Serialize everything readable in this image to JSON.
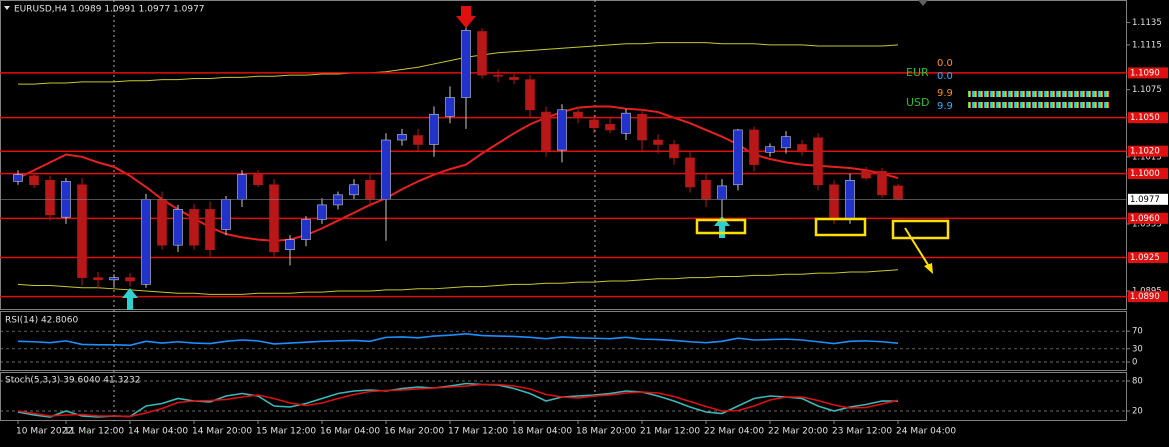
{
  "chart_data": [
    {
      "type": "candlestick",
      "title": "EURUSD,H4  1.0989 1.0991 1.0977 1.0977",
      "categories": [
        "10 Mar 2022",
        null,
        null,
        "11 Mar 12:00",
        null,
        null,
        null,
        "14 Mar 04:00",
        null,
        null,
        null,
        "14 Mar 20:00",
        null,
        null,
        null,
        "15 Mar 12:00",
        null,
        null,
        null,
        "16 Mar 04:00",
        null,
        null,
        null,
        "16 Mar 20:00",
        null,
        null,
        null,
        "17 Mar 12:00",
        null,
        null,
        null,
        "18 Mar 04:00",
        null,
        null,
        null,
        "18 Mar 20:00",
        null,
        null,
        null,
        "21 Mar 12:00",
        null,
        null,
        null,
        "22 Mar 04:00",
        null,
        null,
        null,
        "22 Mar 20:00",
        null,
        null,
        null,
        "23 Mar 12:00",
        null,
        null,
        null,
        "24 Mar 04:00"
      ],
      "open": [
        1.0993,
        1.0998,
        1.0994,
        1.0961,
        1.099,
        1.0907,
        1.0905,
        1.0907,
        1.0901,
        1.0977,
        1.0936,
        1.0968,
        1.0968,
        1.095,
        1.0977,
        1.0999,
        1.099,
        1.0932,
        1.0941,
        1.0959,
        1.0972,
        1.0981,
        1.0994,
        1.0977,
        1.103,
        1.1034,
        1.1026,
        1.1051,
        1.1068,
        1.1127,
        1.1088,
        1.1086,
        1.1084,
        1.1055,
        1.1021,
        1.1055,
        1.1048,
        1.1044,
        1.1036,
        1.1053,
        1.103,
        1.1026,
        1.1014,
        1.0994,
        1.0977,
        1.099,
        1.1039,
        1.1019,
        1.1023,
        1.1026,
        1.1032,
        1.099,
        1.0959,
        1.1002,
        1.1002,
        1.0989
      ],
      "high": [
        1.1003,
        1.1001,
        1.0998,
        1.0996,
        1.0996,
        1.0912,
        1.091,
        1.0911,
        1.0982,
        1.0984,
        1.0972,
        1.0973,
        1.0975,
        1.098,
        1.1003,
        1.1003,
        1.0995,
        1.0945,
        1.0962,
        1.0978,
        1.0984,
        1.0995,
        1.1,
        1.1036,
        1.104,
        1.104,
        1.106,
        1.1078,
        1.1135,
        1.113,
        1.1093,
        1.109,
        1.1088,
        1.106,
        1.1062,
        1.106,
        1.1052,
        1.105,
        1.1058,
        1.1058,
        1.1035,
        1.103,
        1.102,
        1.1,
        1.0995,
        1.104,
        1.1042,
        1.1027,
        1.1038,
        1.103,
        1.1036,
        1.0994,
        1.1,
        1.1006,
        1.1005,
        1.0991
      ],
      "low": [
        1.099,
        1.0987,
        1.0958,
        1.0955,
        1.09,
        1.0897,
        1.0898,
        1.0899,
        1.0898,
        1.0932,
        1.093,
        1.0932,
        1.0925,
        1.0945,
        1.097,
        1.0988,
        1.0925,
        1.0918,
        1.0935,
        1.0955,
        1.0968,
        1.0977,
        1.097,
        1.094,
        1.1025,
        1.102,
        1.1015,
        1.1045,
        1.104,
        1.1085,
        1.1082,
        1.108,
        1.105,
        1.1015,
        1.101,
        1.1045,
        1.1036,
        1.1036,
        1.103,
        1.102,
        1.1018,
        1.1008,
        1.0983,
        1.097,
        1.0955,
        1.0985,
        1.1002,
        1.1015,
        1.1018,
        1.1016,
        1.0985,
        1.0955,
        1.0955,
        1.0994,
        1.0978,
        1.0977
      ],
      "close": [
        1.0999,
        1.099,
        1.0963,
        1.0993,
        1.0907,
        1.0905,
        1.0907,
        1.0904,
        1.0977,
        1.0936,
        1.0968,
        1.0936,
        1.0932,
        1.0977,
        1.0999,
        1.099,
        1.093,
        1.0941,
        1.0959,
        1.0972,
        1.0981,
        1.099,
        1.0977,
        1.103,
        1.1035,
        1.1026,
        1.1053,
        1.1068,
        1.1128,
        1.1088,
        1.1087,
        1.1084,
        1.1057,
        1.1021,
        1.1057,
        1.105,
        1.1041,
        1.1039,
        1.1054,
        1.103,
        1.1026,
        1.1014,
        1.0988,
        1.0977,
        1.0989,
        1.1039,
        1.1008,
        1.1024,
        1.1033,
        1.1021,
        1.099,
        1.0959,
        1.0994,
        1.0996,
        1.0981,
        1.0977
      ],
      "up_color": "#2233cc",
      "down_color": "#b81818",
      "lines": [
        {
          "color": "#c8c832",
          "values": [
            1.108,
            1.108,
            1.1081,
            1.1081,
            1.1082,
            1.1082,
            1.1082,
            1.1083,
            1.1083,
            1.1084,
            1.1084,
            1.1085,
            1.1085,
            1.1086,
            1.1086,
            1.1087,
            1.1087,
            1.1088,
            1.1088,
            1.1089,
            1.1089,
            1.109,
            1.109,
            1.1091,
            1.1093,
            1.1095,
            1.1098,
            1.1101,
            1.1104,
            1.1106,
            1.1108,
            1.1109,
            1.111,
            1.1111,
            1.1112,
            1.1113,
            1.1114,
            1.1115,
            1.1116,
            1.1116,
            1.1117,
            1.1117,
            1.1117,
            1.1117,
            1.1116,
            1.1116,
            1.1116,
            1.1115,
            1.1115,
            1.1115,
            1.1114,
            1.1114,
            1.1114,
            1.1114,
            1.1114,
            1.1115
          ]
        },
        {
          "color": "#c8c832",
          "values": [
            1.0901,
            1.09,
            1.09,
            1.0899,
            1.0898,
            1.0898,
            1.0897,
            1.0896,
            1.0895,
            1.0894,
            1.0893,
            1.0893,
            1.0892,
            1.0892,
            1.0892,
            1.0893,
            1.0893,
            1.0893,
            1.0894,
            1.0894,
            1.0895,
            1.0895,
            1.0895,
            1.0896,
            1.0896,
            1.0897,
            1.0897,
            1.0898,
            1.0899,
            1.0899,
            1.09,
            1.0901,
            1.0901,
            1.0902,
            1.0902,
            1.0903,
            1.0903,
            1.0904,
            1.0904,
            1.0905,
            1.0906,
            1.0906,
            1.0907,
            1.0907,
            1.0908,
            1.0908,
            1.0909,
            1.0909,
            1.091,
            1.091,
            1.0911,
            1.0911,
            1.0912,
            1.0912,
            1.0913,
            1.0914
          ]
        },
        {
          "color": "#e82020",
          "values": [
            1.0996,
            1.1003,
            1.101,
            1.1017,
            1.1015,
            1.101,
            1.1006,
            1.0998,
            1.0988,
            1.0977,
            1.0968,
            1.096,
            1.0952,
            1.0946,
            1.0943,
            1.0941,
            1.094,
            1.0941,
            1.0945,
            1.0951,
            1.0958,
            1.0965,
            1.0972,
            1.0978,
            1.0986,
            1.0993,
            1.0999,
            1.1004,
            1.1008,
            1.1018,
            1.1027,
            1.1036,
            1.1044,
            1.105,
            1.1055,
            1.1059,
            1.106,
            1.106,
            1.1058,
            1.1057,
            1.1055,
            1.105,
            1.1045,
            1.1039,
            1.1033,
            1.1026,
            1.1017,
            1.1013,
            1.101,
            1.1008,
            1.1007,
            1.1006,
            1.1005,
            1.1003,
            1.1,
            1.0996
          ]
        }
      ],
      "levels": [
        {
          "value": 1.109,
          "label": "1.1090"
        },
        {
          "value": 1.105,
          "label": "1.1050"
        },
        {
          "value": 1.102,
          "label": "1.1020"
        },
        {
          "value": 1.1,
          "label": "1.1000"
        },
        {
          "value": 1.096,
          "label": "1.0960"
        },
        1.0925,
        {
          "value": 1.089,
          "label": "1.0890"
        }
      ],
      "level_color": "#e01010",
      "current_price": 1.0977,
      "ylim": [
        1.0887,
        1.1148
      ],
      "yticks": [
        1.1135,
        1.1115,
        1.1075,
        1.1015,
        1.0955,
        1.0895
      ]
    },
    {
      "type": "line",
      "title": "RSI(14) 42.8060",
      "ylim": [
        0,
        100
      ],
      "yticks": [
        70,
        30,
        0
      ],
      "series": [
        {
          "color": "#1e8fff",
          "values": [
            47,
            46,
            44,
            48,
            40,
            39,
            39,
            38,
            47,
            43,
            46,
            43,
            42,
            47,
            50,
            48,
            41,
            43,
            45,
            47,
            48,
            49,
            47,
            56,
            57,
            55,
            59,
            61,
            64,
            60,
            59,
            58,
            56,
            53,
            57,
            55,
            54,
            53,
            56,
            52,
            51,
            49,
            46,
            44,
            47,
            54,
            50,
            51,
            52,
            50,
            46,
            42,
            47,
            48,
            46,
            42.806
          ]
        }
      ]
    },
    {
      "type": "line",
      "title": "Stoch(5,3,3) 39.6040 41.3232",
      "ylim": [
        0,
        100
      ],
      "yticks": [
        80,
        20
      ],
      "series": [
        {
          "color": "#3cb8b8",
          "values": [
            18,
            12,
            8,
            20,
            10,
            8,
            10,
            9,
            30,
            35,
            45,
            40,
            38,
            50,
            55,
            50,
            30,
            28,
            35,
            45,
            55,
            60,
            62,
            60,
            65,
            68,
            66,
            70,
            75,
            73,
            72,
            65,
            55,
            40,
            48,
            50,
            52,
            55,
            60,
            58,
            50,
            40,
            28,
            18,
            15,
            30,
            45,
            50,
            48,
            45,
            30,
            20,
            28,
            33,
            40,
            39.604
          ]
        },
        {
          "color": "#e01010",
          "values": [
            20,
            15,
            10,
            12,
            13,
            10,
            10,
            9,
            16,
            25,
            37,
            40,
            41,
            43,
            48,
            52,
            45,
            36,
            31,
            36,
            45,
            53,
            59,
            61,
            62,
            64,
            66,
            68,
            70,
            73,
            73,
            70,
            64,
            53,
            48,
            46,
            50,
            52,
            56,
            58,
            56,
            49,
            39,
            29,
            20,
            21,
            30,
            42,
            48,
            48,
            41,
            32,
            26,
            27,
            34,
            41.3232
          ]
        }
      ]
    }
  ],
  "strength_panel": {
    "rows": [
      {
        "currency": "EUR",
        "value_a": "0.0",
        "value_b": "0.0"
      },
      {
        "currency": "USD",
        "value_a": "9.9",
        "value_b": "9.9"
      }
    ]
  }
}
